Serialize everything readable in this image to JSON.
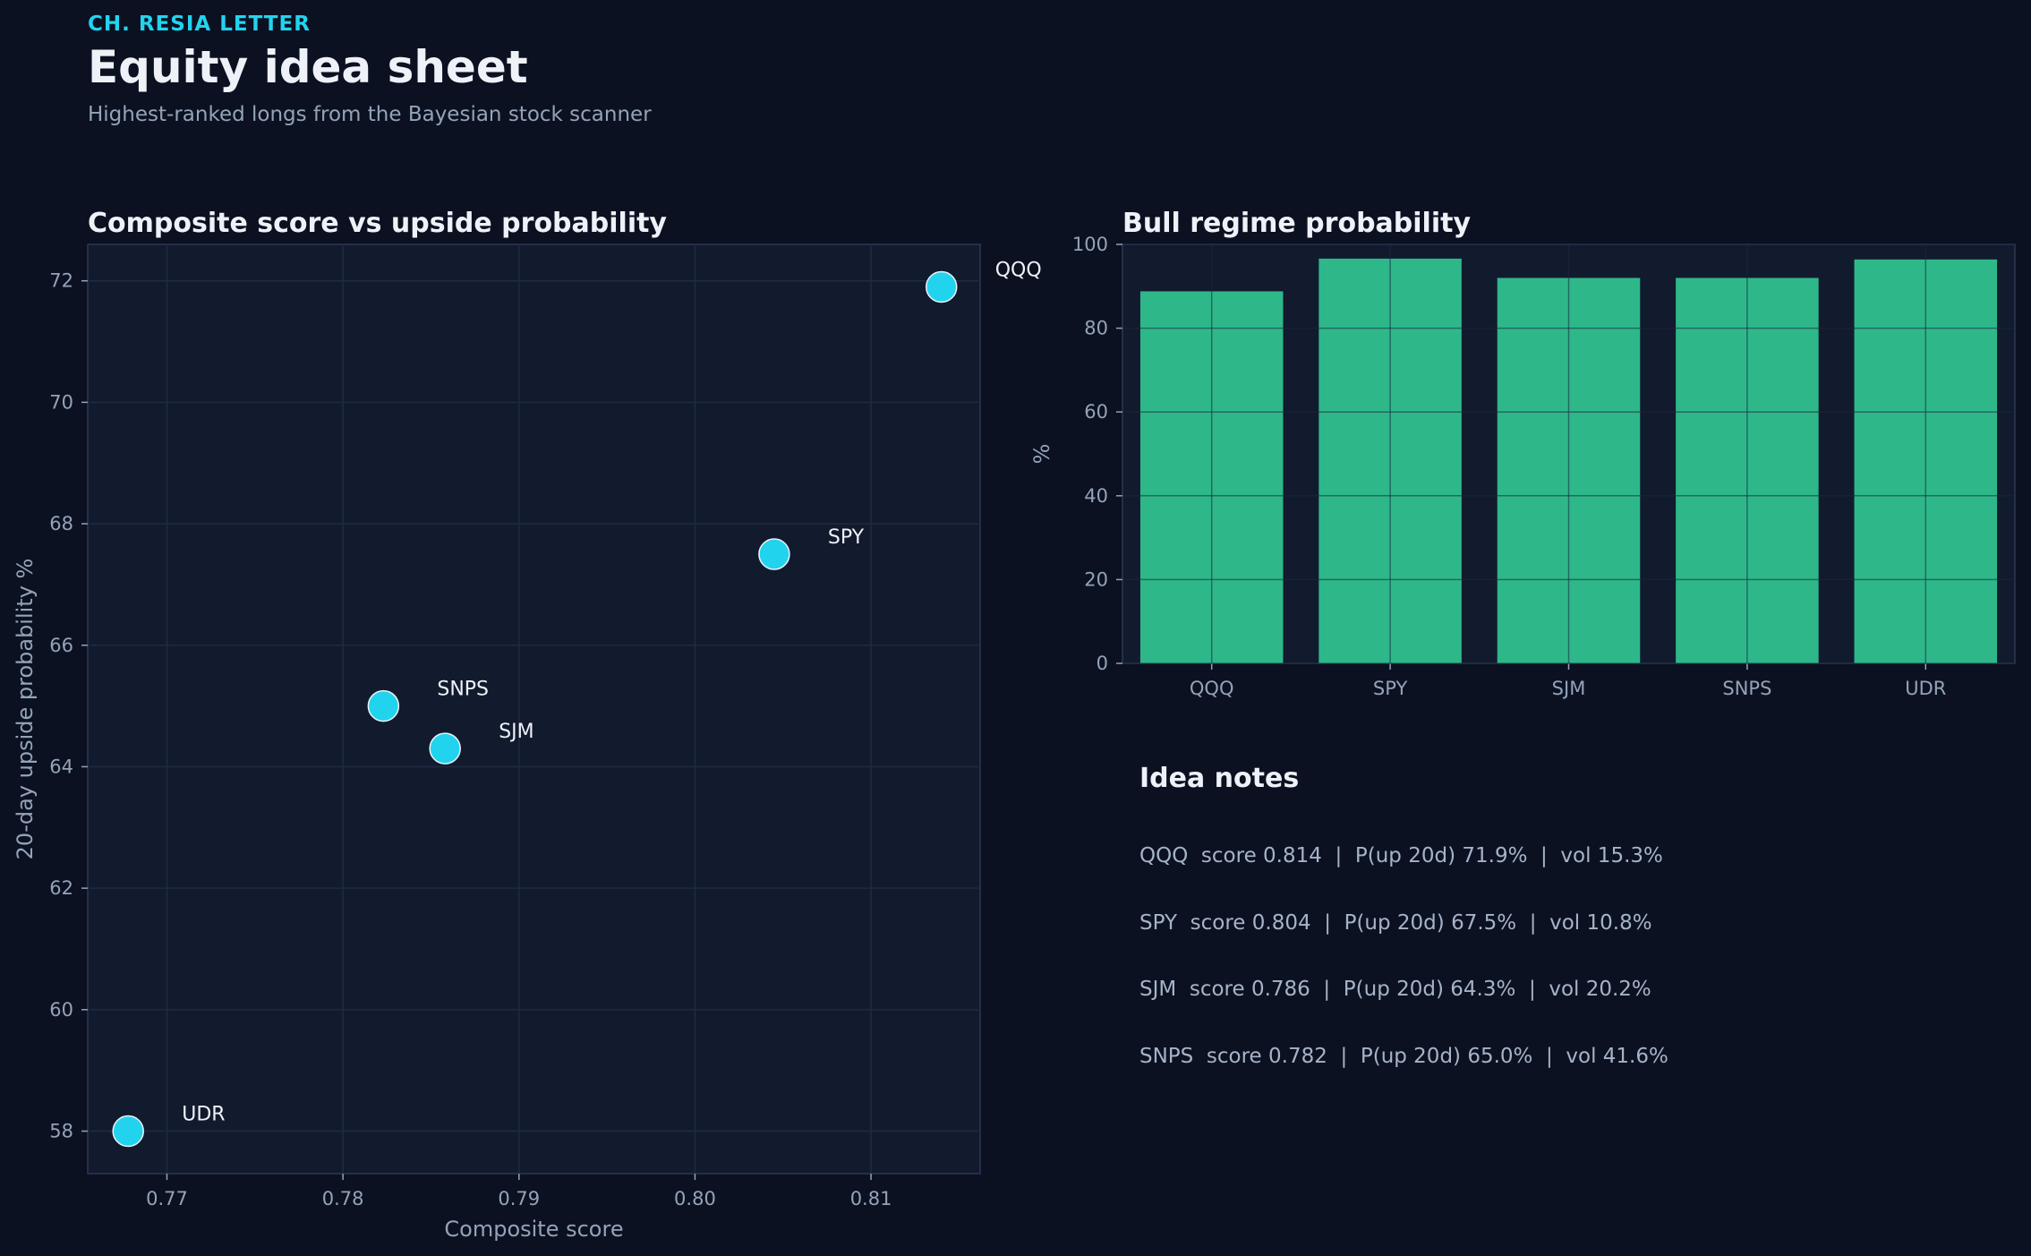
{
  "header": {
    "kicker": "CH. RESIA LETTER",
    "title": "Equity idea sheet",
    "subtitle": "Highest-ranked longs from the Bayesian stock scanner"
  },
  "colors": {
    "background": "#0b1121",
    "panel": "#121a2e",
    "scatter_point": "#22d3ee",
    "bar": "#2eb88a",
    "accent": "#22d3ee"
  },
  "chart_data": [
    {
      "type": "scatter",
      "title": "Composite score vs upside probability",
      "xlabel": "Composite score",
      "ylabel": "20-day upside probability %",
      "xlim": [
        0.7655,
        0.8162
      ],
      "ylim": [
        57.3,
        72.6
      ],
      "xticks": [
        "0.77",
        "0.78",
        "0.79",
        "0.80",
        "0.81"
      ],
      "yticks": [
        "58",
        "60",
        "62",
        "64",
        "66",
        "68",
        "70",
        "72"
      ],
      "grid": true,
      "points": [
        {
          "label": "QQQ",
          "x": 0.814,
          "y": 71.9
        },
        {
          "label": "SPY",
          "x": 0.8045,
          "y": 67.5
        },
        {
          "label": "SNPS",
          "x": 0.7823,
          "y": 65.0
        },
        {
          "label": "SJM",
          "x": 0.7858,
          "y": 64.3
        },
        {
          "label": "UDR",
          "x": 0.7678,
          "y": 58.0
        }
      ]
    },
    {
      "type": "bar",
      "title": "Bull regime probability",
      "xlabel": "",
      "ylabel": "%",
      "ylim": [
        0,
        100
      ],
      "yticks": [
        "0",
        "20",
        "40",
        "60",
        "80",
        "100"
      ],
      "grid": true,
      "categories": [
        "QQQ",
        "SPY",
        "SJM",
        "SNPS",
        "UDR"
      ],
      "values": [
        88.8,
        96.6,
        92.0,
        92.0,
        96.4
      ]
    }
  ],
  "notes": {
    "title": "Idea notes",
    "items": [
      "QQQ  score 0.814  |  P(up 20d) 71.9%  |  vol 15.3%",
      "SPY  score 0.804  |  P(up 20d) 67.5%  |  vol 10.8%",
      "SJM  score 0.786  |  P(up 20d) 64.3%  |  vol 20.2%",
      "SNPS  score 0.782  |  P(up 20d) 65.0%  |  vol 41.6%"
    ]
  }
}
